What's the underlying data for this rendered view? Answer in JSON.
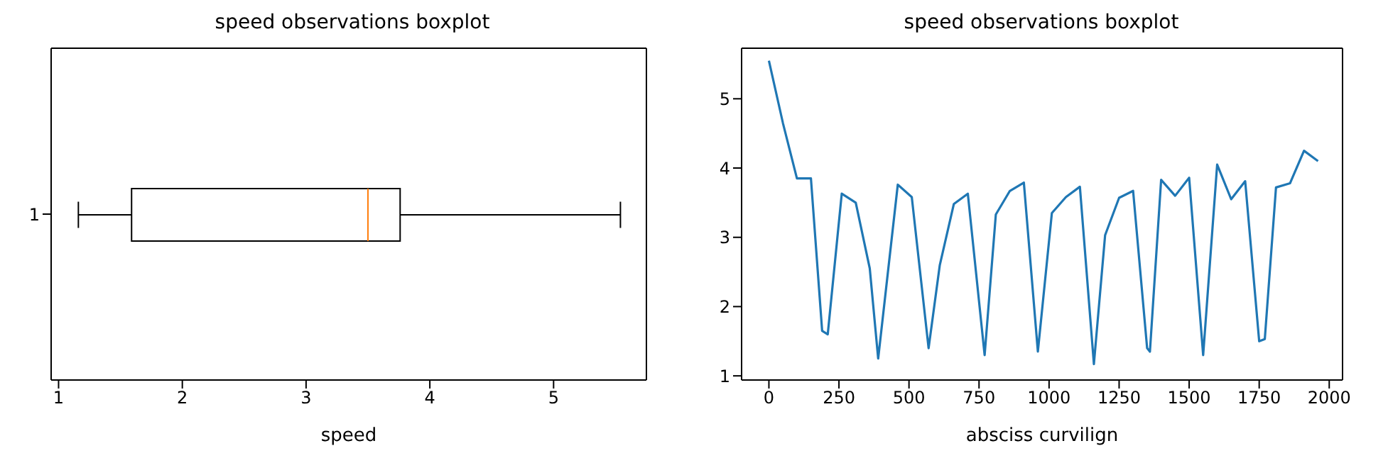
{
  "chart_data": [
    {
      "type": "box",
      "title": "speed observations boxplot",
      "xlabel": "speed",
      "orientation": "horizontal",
      "categories": [
        "1"
      ],
      "xlim": [
        0.94,
        5.75
      ],
      "xticks": [
        1,
        2,
        3,
        4,
        5
      ],
      "series": [
        {
          "color": "#000000",
          "boxes": [
            {
              "low": 1.16,
              "q1": 1.59,
              "median": 3.5,
              "q3": 3.76,
              "high": 5.54
            }
          ]
        }
      ]
    },
    {
      "type": "line",
      "title": "speed observations boxplot",
      "xlabel": "absciss curvilign",
      "xlim": [
        -97.5,
        2047.5
      ],
      "xticks": [
        0,
        250,
        500,
        750,
        1000,
        1250,
        1500,
        1750,
        2000
      ],
      "ylim": [
        0.94,
        5.73
      ],
      "yticks": [
        1,
        2,
        3,
        4,
        5
      ],
      "x": [
        0,
        50,
        100,
        150,
        190,
        210,
        260,
        310,
        360,
        390,
        460,
        510,
        570,
        610,
        660,
        710,
        770,
        810,
        860,
        910,
        960,
        1010,
        1060,
        1110,
        1160,
        1200,
        1250,
        1300,
        1350,
        1360,
        1400,
        1450,
        1500,
        1550,
        1600,
        1650,
        1700,
        1750,
        1770,
        1810,
        1860,
        1910,
        1960
      ],
      "series": [
        {
          "color": "#1f77b4",
          "values": [
            5.55,
            4.65,
            3.85,
            3.85,
            1.65,
            1.6,
            3.63,
            3.5,
            2.55,
            1.25,
            3.76,
            3.58,
            1.4,
            2.6,
            3.48,
            3.63,
            1.3,
            3.33,
            3.67,
            3.79,
            1.35,
            3.35,
            3.58,
            3.73,
            1.17,
            3.03,
            3.57,
            3.67,
            1.4,
            1.35,
            3.83,
            3.6,
            3.86,
            1.3,
            4.05,
            3.55,
            3.81,
            1.5,
            1.53,
            3.72,
            3.78,
            4.25,
            4.1
          ]
        }
      ]
    }
  ]
}
